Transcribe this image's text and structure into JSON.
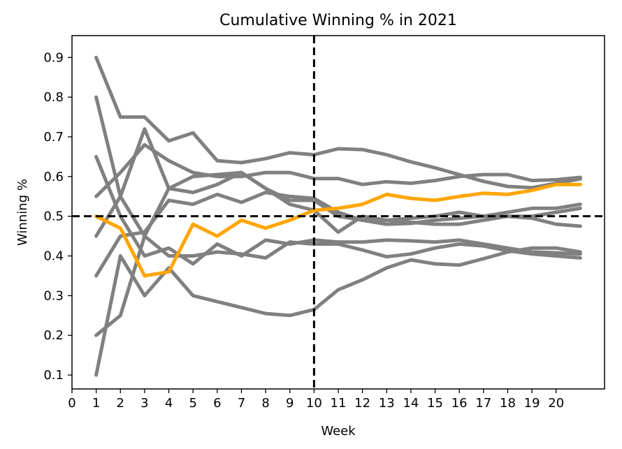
{
  "chart_data": {
    "type": "line",
    "title": "Cumulative Winning % in 2021",
    "xlabel": "Week",
    "ylabel": "Winning %",
    "xlim": [
      0,
      22
    ],
    "ylim": [
      0.065,
      0.955
    ],
    "x_ticks": [
      0,
      1,
      2,
      3,
      4,
      5,
      6,
      7,
      8,
      9,
      10,
      11,
      12,
      13,
      14,
      15,
      16,
      17,
      18,
      19,
      20
    ],
    "y_ticks": [
      0.1,
      0.2,
      0.3,
      0.4,
      0.5,
      0.6,
      0.7,
      0.8,
      0.9
    ],
    "y_tick_labels": [
      "0.1",
      "0.2",
      "0.3",
      "0.4",
      "0.5",
      "0.6",
      "0.7",
      "0.8",
      "0.9"
    ],
    "grid": false,
    "x": [
      1,
      2,
      3,
      4,
      5,
      6,
      7,
      8,
      9,
      10,
      11,
      12,
      13,
      14,
      15,
      16,
      17,
      18,
      19,
      20,
      21
    ],
    "reference_lines": {
      "horizontal": 0.5,
      "vertical": 10,
      "style": "dashed",
      "color": "#000000"
    },
    "colors": {
      "highlight": "#FFA500",
      "others": "#808080"
    },
    "series": [
      {
        "highlight": false,
        "values": [
          0.9,
          0.75,
          0.75,
          0.69,
          0.71,
          0.64,
          0.635,
          0.645,
          0.66,
          0.655,
          0.67,
          0.668,
          0.655,
          0.637,
          0.622,
          0.605,
          0.588,
          0.575,
          0.572,
          0.583,
          0.594
        ]
      },
      {
        "highlight": false,
        "values": [
          0.8,
          0.55,
          0.45,
          0.57,
          0.6,
          0.605,
          0.61,
          0.57,
          0.54,
          0.54,
          0.5,
          0.49,
          0.48,
          0.482,
          0.49,
          0.495,
          0.5,
          0.5,
          0.5,
          0.51,
          0.52
        ]
      },
      {
        "highlight": false,
        "values": [
          0.65,
          0.5,
          0.4,
          0.42,
          0.38,
          0.43,
          0.4,
          0.44,
          0.43,
          0.44,
          0.435,
          0.435,
          0.44,
          0.438,
          0.435,
          0.44,
          0.43,
          0.42,
          0.41,
          0.408,
          0.405
        ]
      },
      {
        "highlight": false,
        "values": [
          0.55,
          0.61,
          0.68,
          0.64,
          0.61,
          0.6,
          0.6,
          0.61,
          0.61,
          0.595,
          0.595,
          0.58,
          0.587,
          0.583,
          0.59,
          0.6,
          0.605,
          0.605,
          0.59,
          0.592,
          0.598
        ]
      },
      {
        "highlight": false,
        "values": [
          0.45,
          0.55,
          0.72,
          0.57,
          0.56,
          0.58,
          0.61,
          0.57,
          0.53,
          0.515,
          0.46,
          0.5,
          0.49,
          0.495,
          0.5,
          0.51,
          0.5,
          0.51,
          0.52,
          0.52,
          0.53
        ]
      },
      {
        "highlight": false,
        "values": [
          0.35,
          0.45,
          0.46,
          0.54,
          0.53,
          0.555,
          0.535,
          0.56,
          0.55,
          0.545,
          0.51,
          0.49,
          0.49,
          0.485,
          0.48,
          0.48,
          0.49,
          0.5,
          0.495,
          0.48,
          0.475
        ]
      },
      {
        "highlight": false,
        "values": [
          0.2,
          0.25,
          0.45,
          0.4,
          0.4,
          0.41,
          0.405,
          0.395,
          0.435,
          0.43,
          0.43,
          0.415,
          0.398,
          0.405,
          0.42,
          0.43,
          0.425,
          0.413,
          0.405,
          0.4,
          0.395
        ]
      },
      {
        "highlight": false,
        "values": [
          0.1,
          0.4,
          0.3,
          0.37,
          0.3,
          0.285,
          0.27,
          0.255,
          0.25,
          0.265,
          0.315,
          0.34,
          0.37,
          0.39,
          0.38,
          0.377,
          0.393,
          0.41,
          0.42,
          0.42,
          0.41
        ]
      },
      {
        "highlight": true,
        "values": [
          0.5,
          0.47,
          0.35,
          0.36,
          0.48,
          0.45,
          0.49,
          0.47,
          0.49,
          0.515,
          0.52,
          0.53,
          0.555,
          0.545,
          0.54,
          0.55,
          0.558,
          0.555,
          0.565,
          0.58,
          0.58
        ]
      }
    ]
  }
}
